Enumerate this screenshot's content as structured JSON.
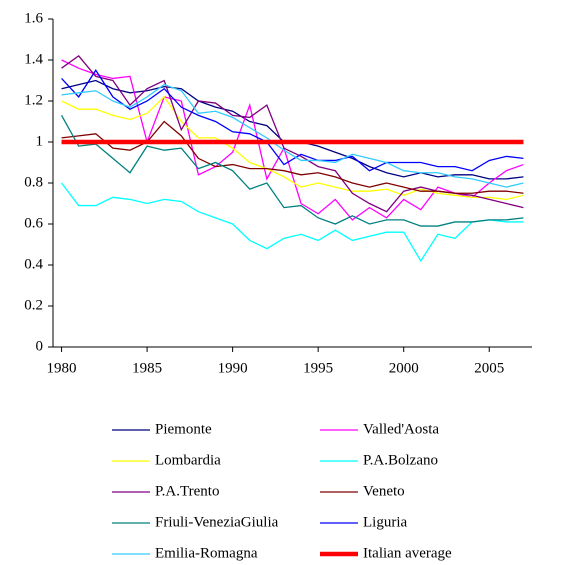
{
  "chart_data": {
    "type": "line",
    "x": [
      1980,
      1981,
      1982,
      1983,
      1984,
      1985,
      1986,
      1987,
      1988,
      1989,
      1990,
      1991,
      1992,
      1993,
      1994,
      1995,
      1996,
      1997,
      1998,
      1999,
      2000,
      2001,
      2002,
      2003,
      2004,
      2005,
      2006,
      2007
    ],
    "xlim": [
      1979.5,
      2007.5
    ],
    "xticks": [
      1980,
      1985,
      1990,
      1995,
      2000,
      2005
    ],
    "ylim": [
      0,
      1.6
    ],
    "yticks": [
      0,
      0.2,
      0.4,
      0.6,
      0.8,
      1,
      1.2,
      1.4,
      1.6
    ],
    "grid": false,
    "legend": "bottom",
    "series": [
      {
        "name": "Piemonte",
        "color": "#000080",
        "line_width": 1.3,
        "values": [
          1.26,
          1.28,
          1.3,
          1.26,
          1.24,
          1.25,
          1.27,
          1.26,
          1.2,
          1.17,
          1.15,
          1.1,
          1.08,
          1.0,
          1.0,
          0.98,
          0.95,
          0.92,
          0.88,
          0.85,
          0.83,
          0.85,
          0.83,
          0.84,
          0.84,
          0.82,
          0.82,
          0.83
        ]
      },
      {
        "name": "Valled'Aosta",
        "color": "#ff00ff",
        "line_width": 1.3,
        "values": [
          1.4,
          1.36,
          1.33,
          1.31,
          1.32,
          1.0,
          1.22,
          1.2,
          0.84,
          0.88,
          0.95,
          1.18,
          0.82,
          0.97,
          0.7,
          0.65,
          0.72,
          0.62,
          0.68,
          0.63,
          0.72,
          0.67,
          0.78,
          0.75,
          0.73,
          0.8,
          0.86,
          0.89
        ]
      },
      {
        "name": "Lombardia",
        "color": "#ffff00",
        "line_width": 1.3,
        "values": [
          1.2,
          1.16,
          1.16,
          1.13,
          1.11,
          1.14,
          1.22,
          1.1,
          1.02,
          1.02,
          0.97,
          0.9,
          0.87,
          0.83,
          0.78,
          0.8,
          0.78,
          0.76,
          0.76,
          0.77,
          0.74,
          0.77,
          0.75,
          0.74,
          0.73,
          0.73,
          0.72,
          0.74
        ]
      },
      {
        "name": "P.A.Bolzano",
        "color": "#00ffff",
        "line_width": 1.3,
        "values": [
          0.8,
          0.69,
          0.69,
          0.73,
          0.72,
          0.7,
          0.72,
          0.71,
          0.66,
          0.63,
          0.6,
          0.52,
          0.48,
          0.53,
          0.55,
          0.52,
          0.57,
          0.52,
          0.54,
          0.56,
          0.56,
          0.42,
          0.55,
          0.53,
          0.61,
          0.62,
          0.61,
          0.61
        ]
      },
      {
        "name": "P.A.Trento",
        "color": "#800080",
        "line_width": 1.3,
        "values": [
          1.36,
          1.42,
          1.32,
          1.3,
          1.18,
          1.26,
          1.3,
          1.06,
          1.2,
          1.19,
          1.13,
          1.12,
          1.18,
          0.97,
          0.93,
          0.88,
          0.86,
          0.75,
          0.7,
          0.66,
          0.76,
          0.78,
          0.76,
          0.75,
          0.74,
          0.72,
          0.7,
          0.68
        ]
      },
      {
        "name": "Veneto",
        "color": "#800000",
        "line_width": 1.3,
        "values": [
          1.02,
          1.03,
          1.04,
          0.97,
          0.96,
          1.0,
          1.1,
          1.03,
          0.92,
          0.88,
          0.89,
          0.87,
          0.87,
          0.86,
          0.84,
          0.85,
          0.83,
          0.8,
          0.78,
          0.8,
          0.78,
          0.76,
          0.76,
          0.75,
          0.75,
          0.76,
          0.76,
          0.75
        ]
      },
      {
        "name": "Friuli-VeneziaGiulia",
        "color": "#008080",
        "line_width": 1.3,
        "values": [
          1.13,
          0.98,
          0.99,
          0.92,
          0.85,
          0.98,
          0.96,
          0.97,
          0.87,
          0.9,
          0.86,
          0.77,
          0.8,
          0.68,
          0.69,
          0.63,
          0.6,
          0.64,
          0.6,
          0.62,
          0.62,
          0.59,
          0.59,
          0.61,
          0.61,
          0.62,
          0.62,
          0.63
        ]
      },
      {
        "name": "Liguria",
        "color": "#0000ff",
        "line_width": 1.3,
        "values": [
          1.31,
          1.22,
          1.35,
          1.22,
          1.16,
          1.2,
          1.26,
          1.17,
          1.13,
          1.1,
          1.05,
          1.04,
          1.0,
          0.89,
          0.94,
          0.91,
          0.91,
          0.93,
          0.86,
          0.9,
          0.9,
          0.9,
          0.88,
          0.88,
          0.86,
          0.91,
          0.93,
          0.92
        ]
      },
      {
        "name": "Emilia-Romagna",
        "color": "#33ccff",
        "line_width": 1.3,
        "values": [
          1.23,
          1.24,
          1.25,
          1.2,
          1.17,
          1.22,
          1.28,
          1.25,
          1.14,
          1.15,
          1.12,
          1.07,
          1.02,
          0.96,
          0.91,
          0.91,
          0.9,
          0.94,
          0.92,
          0.9,
          0.86,
          0.85,
          0.85,
          0.83,
          0.82,
          0.8,
          0.78,
          0.8
        ]
      },
      {
        "name": "Italian average",
        "color": "#ff0000",
        "line_width": 4.5,
        "values": [
          1,
          1,
          1,
          1,
          1,
          1,
          1,
          1,
          1,
          1,
          1,
          1,
          1,
          1,
          1,
          1,
          1,
          1,
          1,
          1,
          1,
          1,
          1,
          1,
          1,
          1,
          1,
          1
        ]
      }
    ]
  }
}
